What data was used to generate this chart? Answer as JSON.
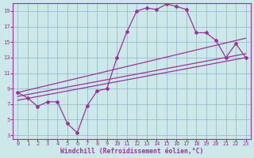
{
  "bg_color": "#cce8e8",
  "grid_color": "#99bbcc",
  "line_color": "#993399",
  "axis_color": "#993399",
  "label_color": "#993399",
  "tick_color": "#993399",
  "spine_color": "#993399",
  "xlim": [
    -0.5,
    23.5
  ],
  "ylim": [
    2.5,
    20.0
  ],
  "xticks": [
    0,
    1,
    2,
    3,
    4,
    5,
    6,
    7,
    8,
    9,
    10,
    11,
    12,
    13,
    14,
    15,
    16,
    17,
    18,
    19,
    20,
    21,
    22,
    23
  ],
  "yticks": [
    3,
    5,
    7,
    9,
    11,
    13,
    15,
    17,
    19
  ],
  "xlabel": "Windchill (Refroidissement éolien,°C)",
  "curve1_x": [
    0,
    1,
    2,
    3,
    4,
    5,
    6,
    7,
    8,
    9,
    10,
    11,
    12,
    13,
    14,
    15,
    16,
    17,
    18,
    19,
    20,
    21,
    22,
    23
  ],
  "curve1_y": [
    8.5,
    7.8,
    6.7,
    7.3,
    7.3,
    4.5,
    3.3,
    6.8,
    8.7,
    9.0,
    13.0,
    16.3,
    19.0,
    19.4,
    19.2,
    19.9,
    19.6,
    19.2,
    16.2,
    16.2,
    15.2,
    13.0,
    14.8,
    13.0
  ],
  "line2_x": [
    0,
    23
  ],
  "line2_y": [
    8.5,
    15.5
  ],
  "line3_x": [
    0,
    23
  ],
  "line3_y": [
    8.0,
    13.5
  ],
  "line4_x": [
    0,
    23
  ],
  "line4_y": [
    7.5,
    13.0
  ]
}
